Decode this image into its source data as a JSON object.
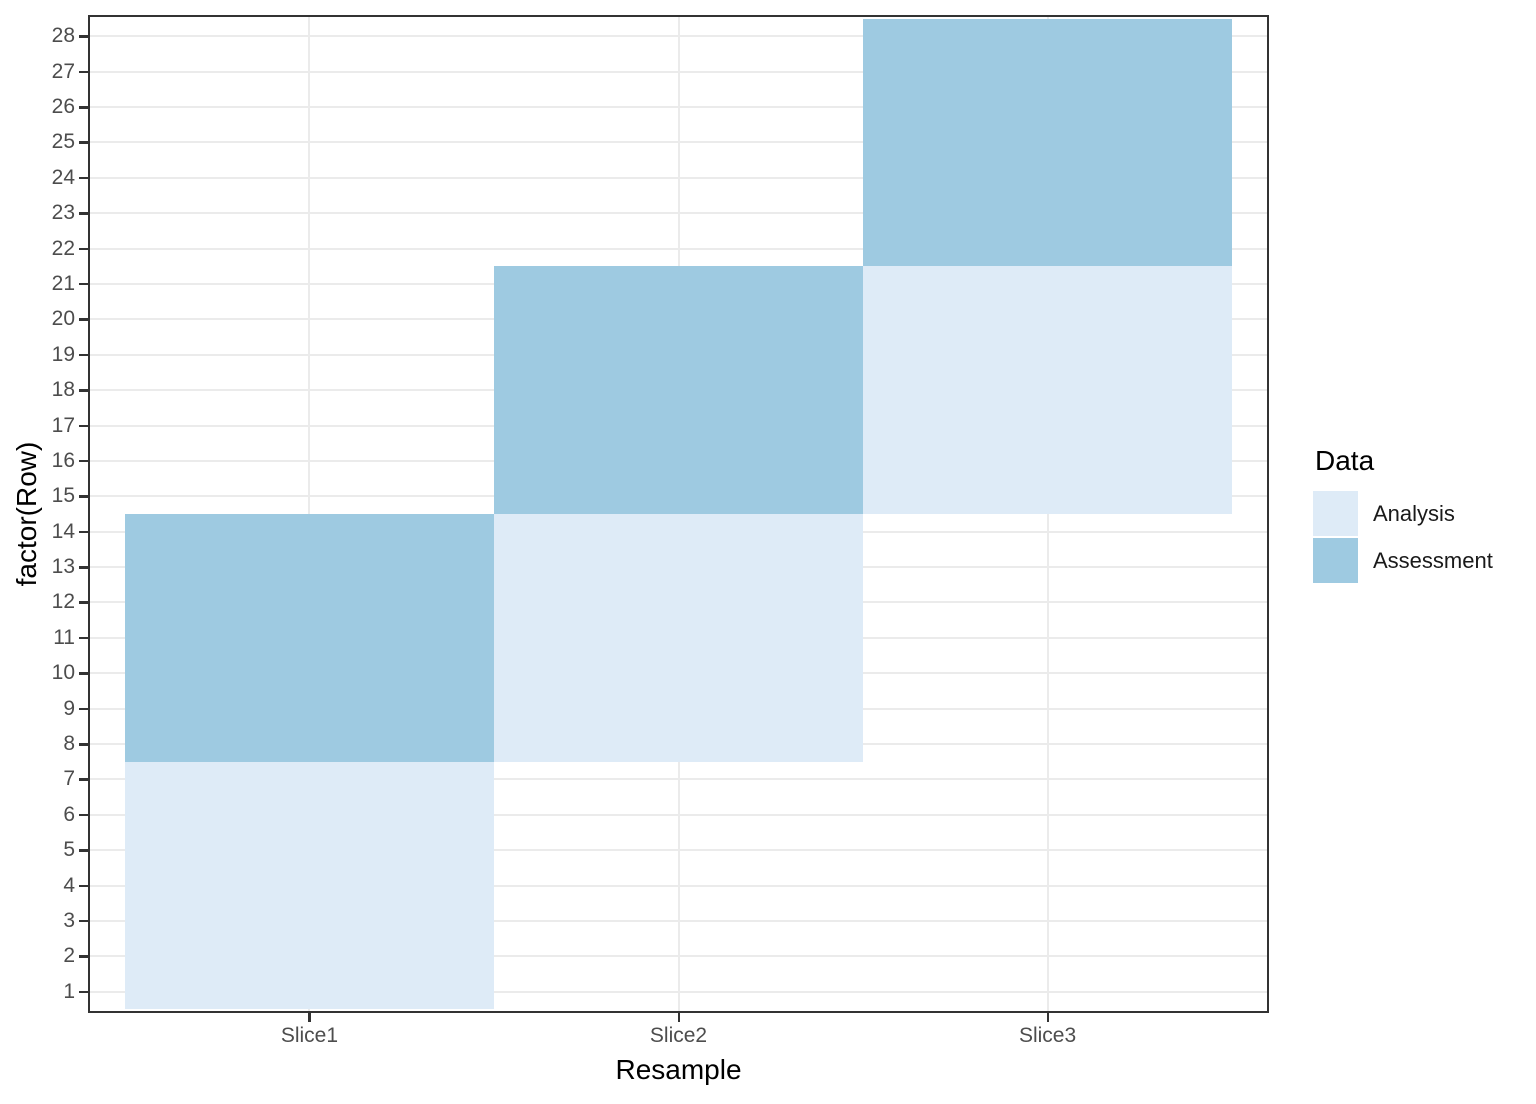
{
  "chart_data": {
    "type": "heatmap",
    "title": "",
    "xlabel": "Resample",
    "ylabel": "factor(Row)",
    "x_categories": [
      "Slice1",
      "Slice2",
      "Slice3"
    ],
    "y_tick_labels": [
      "1",
      "2",
      "3",
      "4",
      "5",
      "6",
      "7",
      "8",
      "9",
      "10",
      "11",
      "12",
      "13",
      "14",
      "15",
      "16",
      "17",
      "18",
      "19",
      "20",
      "21",
      "22",
      "23",
      "24",
      "25",
      "26",
      "27",
      "28"
    ],
    "x_range": [
      0.4,
      3.6
    ],
    "y_range": [
      0.4,
      28.6
    ],
    "grid": true,
    "legend_position": "right",
    "legend": {
      "title": "Data",
      "items": [
        {
          "label": "Analysis",
          "color": "#DEEBF7"
        },
        {
          "label": "Assessment",
          "color": "#9ECAE1"
        }
      ]
    },
    "tiles": [
      {
        "x": "Slice1",
        "data": "Analysis",
        "row_start": 1,
        "row_end": 7
      },
      {
        "x": "Slice1",
        "data": "Assessment",
        "row_start": 8,
        "row_end": 14
      },
      {
        "x": "Slice2",
        "data": "Analysis",
        "row_start": 8,
        "row_end": 14
      },
      {
        "x": "Slice2",
        "data": "Assessment",
        "row_start": 15,
        "row_end": 21
      },
      {
        "x": "Slice3",
        "data": "Analysis",
        "row_start": 15,
        "row_end": 21
      },
      {
        "x": "Slice3",
        "data": "Assessment",
        "row_start": 22,
        "row_end": 28
      }
    ],
    "colors": {
      "analysis": "#DEEBF7",
      "assessment": "#9ECAE1",
      "grid": "#EBEBEB",
      "panel_border": "#333333",
      "tick": "#333333",
      "tick_label": "#4D4D4D",
      "axis_title": "#000000",
      "background": "#FFFFFF"
    }
  }
}
